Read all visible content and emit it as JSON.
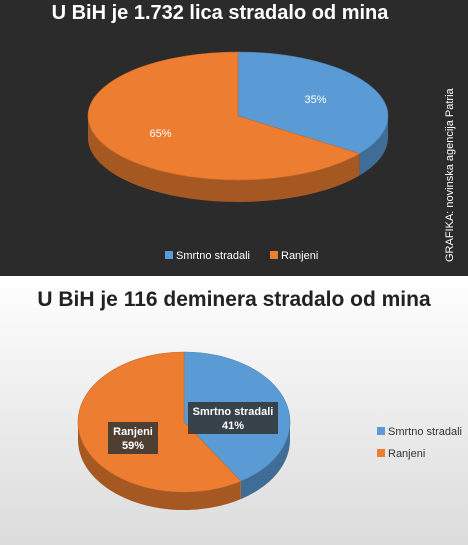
{
  "credit": "GRAFIKA: novinska agencija Patria",
  "chart_data": [
    {
      "type": "pie",
      "title": "U BiH je 1.732 lica stradalo od mina",
      "categories": [
        "Smrtno stradali",
        "Ranjeni"
      ],
      "values": [
        35,
        65
      ],
      "labels": [
        "35%",
        "65%"
      ],
      "colors": [
        "#5b9bd5",
        "#ed7d31"
      ],
      "legend": "bottom",
      "legend_labels": [
        "Smrtno stradali",
        "Ranjeni"
      ]
    },
    {
      "type": "pie",
      "title": "U BiH je 116 deminera stradalo od mina",
      "categories": [
        "Smrtno stradali",
        "Ranjeni"
      ],
      "values": [
        41,
        59
      ],
      "labels": [
        {
          "name": "Smrtno stradali",
          "pct": "41%"
        },
        {
          "name": "Ranjeni",
          "pct": "59%"
        }
      ],
      "colors": [
        "#5b9bd5",
        "#ed7d31"
      ],
      "legend": "right",
      "legend_labels": [
        "Smrtno stradali",
        "Ranjeni"
      ]
    }
  ]
}
